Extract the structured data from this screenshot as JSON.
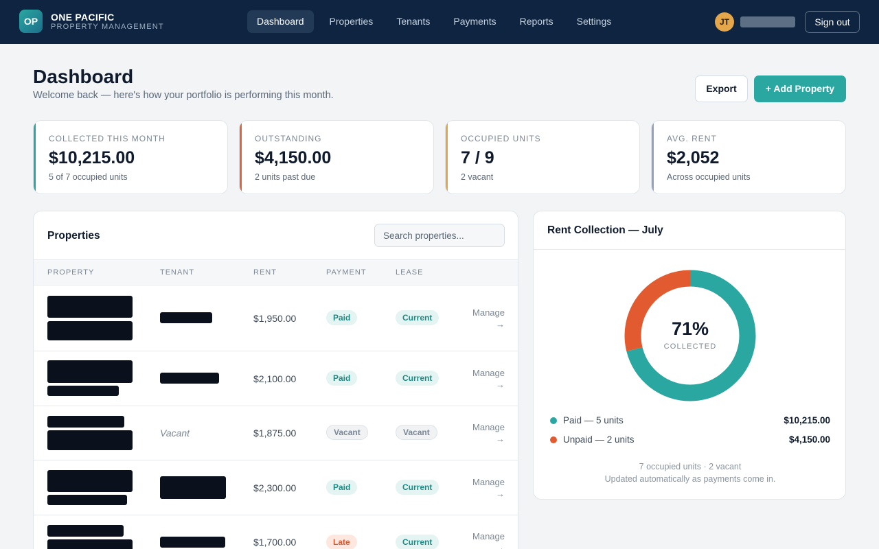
{
  "brand": {
    "logo": "OP",
    "name": "ONE PACIFIC",
    "sub": "PROPERTY MANAGEMENT"
  },
  "nav": {
    "items": [
      "Dashboard",
      "Properties",
      "Tenants",
      "Payments",
      "Reports",
      "Settings"
    ],
    "active": "Dashboard"
  },
  "user": {
    "initials": "JT",
    "signout": "Sign out"
  },
  "header": {
    "title": "Dashboard",
    "subtitle": "Welcome back — here's how your portfolio is performing this month.",
    "export": "Export",
    "add": "+ Add Property"
  },
  "stats": [
    {
      "label": "COLLECTED THIS MONTH",
      "value": "$10,215.00",
      "note": "5 of 7 occupied units",
      "accent": "#2aa7a1"
    },
    {
      "label": "OUTSTANDING",
      "value": "$4,150.00",
      "note": "2 units past due",
      "accent": "#e0633a"
    },
    {
      "label": "OCCUPIED UNITS",
      "value": "7 / 9",
      "note": "2 vacant",
      "accent": "#e3a64a"
    },
    {
      "label": "AVG. RENT",
      "value": "$2,052",
      "note": "Across occupied units",
      "accent": "#94a3b8"
    }
  ],
  "properties": {
    "title": "Properties",
    "search_placeholder": "Search properties...",
    "columns": [
      "PROPERTY",
      "TENANT",
      "RENT",
      "PAYMENT",
      "LEASE"
    ],
    "rows": [
      {
        "tenant": "",
        "rent": "$1,950.00",
        "payment": "Paid",
        "lease": "Current",
        "action": "Manage →"
      },
      {
        "tenant": "",
        "rent": "$2,100.00",
        "payment": "Paid",
        "lease": "Current",
        "action": "Manage →"
      },
      {
        "tenant": "Vacant",
        "rent": "$1,875.00",
        "payment": "Vacant",
        "lease": "Vacant",
        "action": "Manage →"
      },
      {
        "tenant": "",
        "rent": "$2,300.00",
        "payment": "Paid",
        "lease": "Current",
        "action": "Manage →"
      },
      {
        "tenant": "",
        "rent": "$1,700.00",
        "payment": "Late",
        "lease": "Current",
        "action": "Manage →"
      }
    ]
  },
  "rent_collection": {
    "title": "Rent Collection — July",
    "percent": "71%",
    "percent_label": "COLLECTED",
    "chart_data": {
      "type": "pie",
      "categories": [
        "Paid",
        "Unpaid"
      ],
      "values": [
        10215,
        4150
      ],
      "colors": [
        "#2aa7a1",
        "#e25b30"
      ]
    },
    "legend": [
      {
        "label": "Paid — 5 units",
        "value": "$10,215.00",
        "color": "#2aa7a1"
      },
      {
        "label": "Unpaid — 2 units",
        "value": "$4,150.00",
        "color": "#e25b30"
      }
    ],
    "footer1": "7 occupied units · 2 vacant",
    "footer2": "Updated automatically as payments come in."
  }
}
